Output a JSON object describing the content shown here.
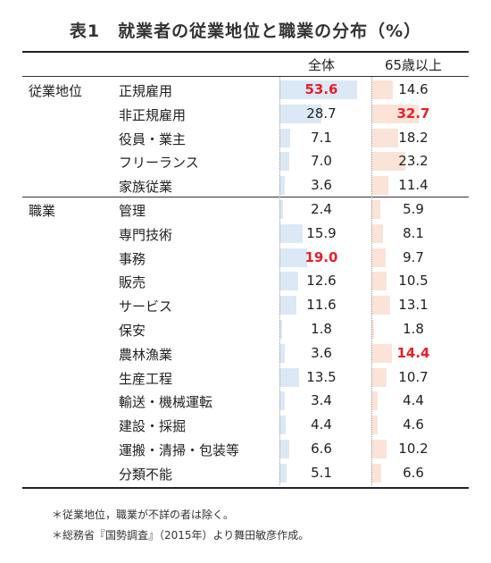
{
  "title": "表1　就業者の従業地位と職業の分布（%）",
  "chart_data": {
    "type": "table",
    "columns": [
      "全体",
      "65歳以上"
    ],
    "groups": [
      {
        "name": "従業地位",
        "rows": [
          {
            "label": "正規雇用",
            "all": "53.6",
            "old": "14.6",
            "hi_all": true,
            "hi_old": false
          },
          {
            "label": "非正規雇用",
            "all": "28.7",
            "old": "32.7",
            "hi_all": false,
            "hi_old": true
          },
          {
            "label": "役員・業主",
            "all": "7.1",
            "old": "18.2",
            "hi_all": false,
            "hi_old": false
          },
          {
            "label": "フリーランス",
            "all": "7.0",
            "old": "23.2",
            "hi_all": false,
            "hi_old": false
          },
          {
            "label": "家族従業",
            "all": "3.6",
            "old": "11.4",
            "hi_all": false,
            "hi_old": false
          }
        ]
      },
      {
        "name": "職業",
        "rows": [
          {
            "label": "管理",
            "all": "2.4",
            "old": "5.9",
            "hi_all": false,
            "hi_old": false
          },
          {
            "label": "専門技術",
            "all": "15.9",
            "old": "8.1",
            "hi_all": false,
            "hi_old": false
          },
          {
            "label": "事務",
            "all": "19.0",
            "old": "9.7",
            "hi_all": true,
            "hi_old": false
          },
          {
            "label": "販売",
            "all": "12.6",
            "old": "10.5",
            "hi_all": false,
            "hi_old": false
          },
          {
            "label": "サービス",
            "all": "11.6",
            "old": "13.1",
            "hi_all": false,
            "hi_old": false
          },
          {
            "label": "保安",
            "all": "1.8",
            "old": "1.8",
            "hi_all": false,
            "hi_old": false
          },
          {
            "label": "農林漁業",
            "all": "3.6",
            "old": "14.4",
            "hi_all": false,
            "hi_old": true
          },
          {
            "label": "生産工程",
            "all": "13.5",
            "old": "10.7",
            "hi_all": false,
            "hi_old": false
          },
          {
            "label": "輸送・機械運転",
            "all": "3.4",
            "old": "4.4",
            "hi_all": false,
            "hi_old": false
          },
          {
            "label": "建設・採掘",
            "all": "4.4",
            "old": "4.6",
            "hi_all": false,
            "hi_old": false
          },
          {
            "label": "運搬・清掃・包装等",
            "all": "6.6",
            "old": "10.2",
            "hi_all": false,
            "hi_old": false
          },
          {
            "label": "分類不能",
            "all": "5.1",
            "old": "6.6",
            "hi_all": false,
            "hi_old": false
          }
        ]
      }
    ],
    "colors": {
      "bar_all": "#dbe8f6",
      "bar_old": "#fbe3d8",
      "highlight": "#e8202a"
    }
  },
  "notes": [
    "＊従業地位，職業が不詳の者は除く。",
    "＊総務省『国勢調査』（2015年）より舞田敏彦作成。"
  ]
}
